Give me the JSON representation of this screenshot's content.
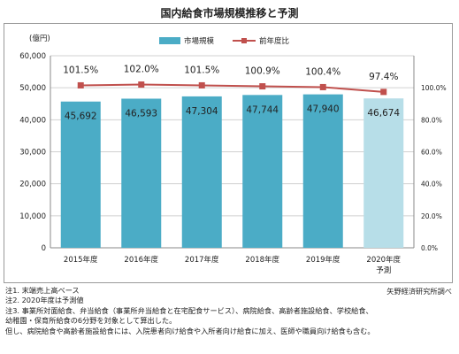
{
  "title": "国内給食市場規模推移と予測",
  "chart_data": {
    "type": "bar",
    "categories": [
      "2015年度",
      "2016年度",
      "2017年度",
      "2018年度",
      "2019年度",
      "2020年度"
    ],
    "category_sublabels": [
      "",
      "",
      "",
      "",
      "",
      "予測"
    ],
    "ylabel": "(億円)",
    "ylim": [
      0,
      60000
    ],
    "yticks": [
      "0",
      "10,000",
      "20,000",
      "30,000",
      "40,000",
      "50,000",
      "60,000"
    ],
    "y2lim": [
      0,
      120
    ],
    "y2ticks": [
      "0.0%",
      "20.0%",
      "40.0%",
      "60.0%",
      "80.0%",
      "100.0%"
    ],
    "grid": true,
    "legend_position": "top-center",
    "series": [
      {
        "name": "市場規模",
        "type": "bar",
        "values": [
          45692,
          46593,
          47304,
          47744,
          47940,
          46674
        ],
        "labels": [
          "45,692",
          "46,593",
          "47,304",
          "47,744",
          "47,940",
          "46,674"
        ],
        "color": "#4bacc6",
        "forecast_color": "#b7dee8"
      },
      {
        "name": "前年度比",
        "type": "line",
        "axis": "secondary",
        "values": [
          101.5,
          102.0,
          101.5,
          100.9,
          100.4,
          97.4
        ],
        "labels": [
          "101.5%",
          "102.0%",
          "101.5%",
          "100.9%",
          "100.4%",
          "97.4%"
        ],
        "color": "#c0504d"
      }
    ]
  },
  "notes": [
    "注1.  末端売上高ベース",
    "注2.  2020年度は予測値",
    "注3.  事業所対面給食、弁当給食（事業所弁当給食と在宅配食サービス）、病院給食、高齢者施設給食、学校給食、",
    "幼稚園・保育所給食の6分野を対象として算出した。",
    "但し、病院給食や高齢者施設給食には、入院患者向け給食や入所者向け給食に加え、医師や職員向け給食も含む。"
  ],
  "source": "矢野経済研究所調べ"
}
